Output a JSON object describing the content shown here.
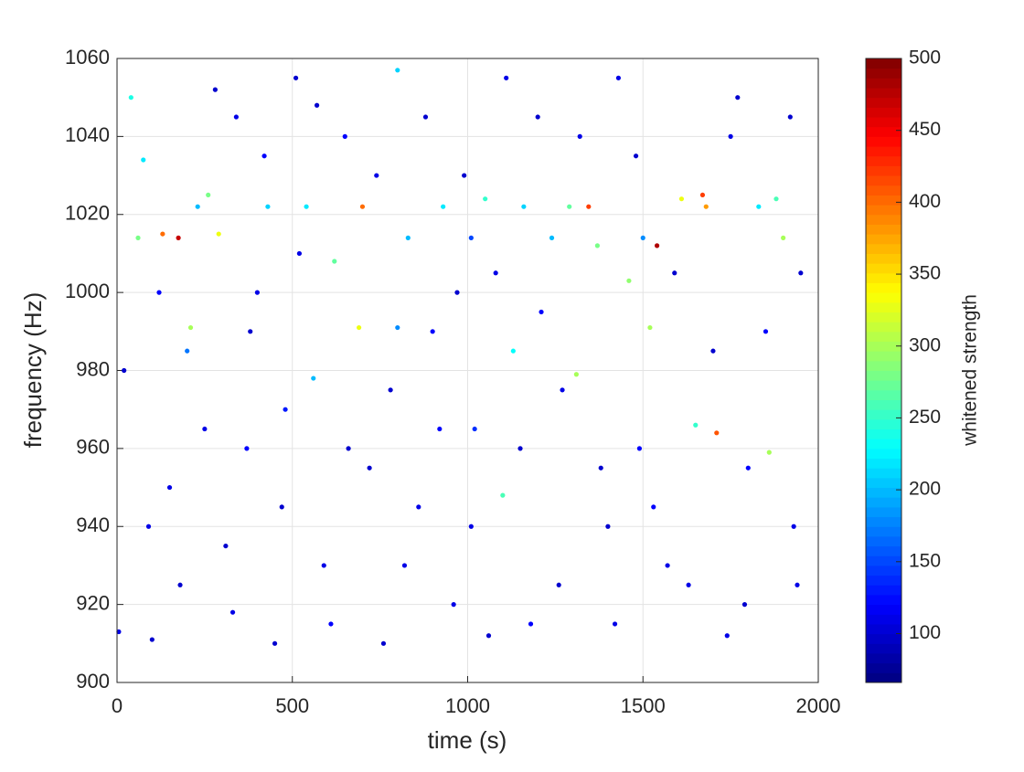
{
  "chart_data": {
    "type": "scatter",
    "x_label": "time (s)",
    "y_label": "frequency (Hz)",
    "colorbar_label": "whitened strength",
    "colormap": "jet",
    "grid": true,
    "xlim": [
      0,
      2000
    ],
    "xticks": [
      0,
      500,
      1000,
      1500,
      2000
    ],
    "ylim": [
      900,
      1060
    ],
    "yticks": [
      900,
      920,
      940,
      960,
      980,
      1000,
      1020,
      1040,
      1060
    ],
    "clim": [
      66,
      500
    ],
    "cticks": [
      100,
      150,
      200,
      250,
      300,
      350,
      400,
      450,
      500
    ],
    "x": [
      5,
      40,
      60,
      75,
      100,
      130,
      150,
      175,
      200,
      210,
      230,
      260,
      290,
      310,
      340,
      370,
      400,
      430,
      450,
      480,
      510,
      540,
      560,
      590,
      620,
      650,
      700,
      690,
      720,
      760,
      800,
      830,
      860,
      900,
      930,
      960,
      990,
      1020,
      1050,
      1080,
      1100,
      1130,
      1160,
      1180,
      1200,
      1240,
      1270,
      1290,
      1310,
      1345,
      1370,
      1400,
      1430,
      1460,
      1490,
      1520,
      1540,
      1570,
      1610,
      1650,
      1670,
      1680,
      1710,
      1740,
      1770,
      1800,
      1830,
      1860,
      1880,
      1900,
      1930,
      1950,
      20,
      90,
      120,
      180,
      250,
      280,
      330,
      380,
      420,
      470,
      520,
      570,
      610,
      660,
      740,
      780,
      820,
      880,
      920,
      970,
      1010,
      1060,
      1110,
      1150,
      1210,
      1260,
      1320,
      1380,
      1420,
      1480,
      1530,
      1590,
      1630,
      1700,
      1750,
      1790,
      1850,
      1920,
      1940,
      1010,
      1500,
      800
    ],
    "values": [
      913,
      1050,
      1014,
      1034,
      911,
      1015,
      950,
      1014,
      985,
      991,
      1022,
      1025,
      1015,
      935,
      1045,
      960,
      1000,
      1022,
      910,
      970,
      1055,
      1022,
      978,
      930,
      1008,
      1040,
      1022,
      991,
      955,
      910,
      1057,
      1014,
      945,
      990,
      1022,
      920,
      1030,
      965,
      1024,
      1005,
      948,
      985,
      1022,
      915,
      1045,
      1014,
      975,
      1022,
      979,
      1022,
      1012,
      940,
      1055,
      1003,
      960,
      991,
      1012,
      930,
      1024,
      966,
      1025,
      1022,
      964,
      912,
      1050,
      955,
      1022,
      959,
      1024,
      1014,
      940,
      1005,
      980,
      940,
      1000,
      925,
      965,
      1052,
      918,
      990,
      1035,
      945,
      1010,
      1048,
      915,
      960,
      1030,
      975,
      930,
      1045,
      965,
      1000,
      940,
      912,
      1055,
      960,
      995,
      925,
      1040,
      955,
      915,
      1035,
      945,
      1005,
      925,
      985,
      1040,
      920,
      990,
      1045,
      925,
      1014,
      1014,
      991
    ],
    "color_values": [
      110,
      240,
      280,
      220,
      100,
      400,
      110,
      470,
      170,
      300,
      200,
      280,
      330,
      100,
      110,
      120,
      110,
      210,
      100,
      130,
      100,
      220,
      200,
      110,
      270,
      120,
      400,
      330,
      100,
      100,
      210,
      200,
      110,
      120,
      220,
      110,
      100,
      140,
      250,
      110,
      260,
      230,
      210,
      120,
      100,
      200,
      110,
      270,
      300,
      420,
      280,
      100,
      110,
      290,
      120,
      300,
      480,
      110,
      330,
      250,
      420,
      380,
      410,
      110,
      100,
      120,
      220,
      300,
      260,
      300,
      110,
      100,
      100,
      110,
      120,
      100,
      110,
      100,
      110,
      100,
      120,
      100,
      110,
      100,
      120,
      100,
      110,
      100,
      110,
      100,
      120,
      100,
      110,
      100,
      110,
      100,
      120,
      100,
      110,
      100,
      110,
      100,
      120,
      100,
      110,
      100,
      110,
      100,
      120,
      100,
      110,
      150,
      180,
      180
    ]
  }
}
